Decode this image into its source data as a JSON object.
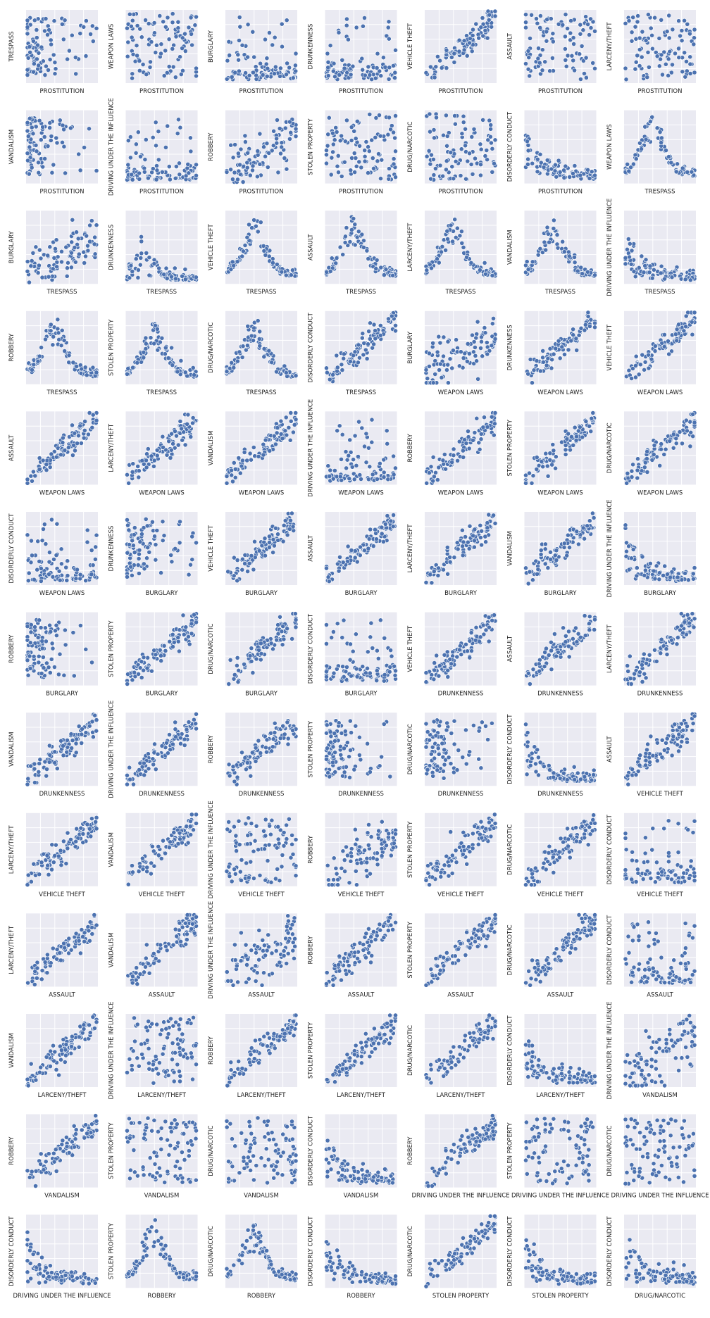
{
  "chart_data": {
    "type": "scatter",
    "grid": true,
    "marker_color": "#4c72b0",
    "marker_edge": "#ffffff",
    "panel_background": "#eaeaf2",
    "panel_gridline": "#ffffff",
    "columns": 7,
    "panels": [
      {
        "x_label": "PROSTITUTION",
        "y_label": "TRESPASS",
        "pattern": "cluster-left"
      },
      {
        "x_label": "PROSTITUTION",
        "y_label": "WEAPON LAWS",
        "pattern": "spread"
      },
      {
        "x_label": "PROSTITUTION",
        "y_label": "BURGLARY",
        "pattern": "cluster-low"
      },
      {
        "x_label": "PROSTITUTION",
        "y_label": "DRUNKENNESS",
        "pattern": "cluster-low"
      },
      {
        "x_label": "PROSTITUTION",
        "y_label": "VEHICLE THEFT",
        "pattern": "positive"
      },
      {
        "x_label": "PROSTITUTION",
        "y_label": "ASSAULT",
        "pattern": "spread"
      },
      {
        "x_label": "PROSTITUTION",
        "y_label": "LARCENY/THEFT",
        "pattern": "spread"
      },
      {
        "x_label": "PROSTITUTION",
        "y_label": "VANDALISM",
        "pattern": "cluster-left"
      },
      {
        "x_label": "PROSTITUTION",
        "y_label": "DRIVING UNDER THE INFLUENCE",
        "pattern": "cluster-low"
      },
      {
        "x_label": "PROSTITUTION",
        "y_label": "ROBBERY",
        "pattern": "positive-weak"
      },
      {
        "x_label": "PROSTITUTION",
        "y_label": "STOLEN PROPERTY",
        "pattern": "spread"
      },
      {
        "x_label": "PROSTITUTION",
        "y_label": "DRUG/NARCOTIC",
        "pattern": "spread"
      },
      {
        "x_label": "PROSTITUTION",
        "y_label": "DISORDERLY CONDUCT",
        "pattern": "decay"
      },
      {
        "x_label": "TRESPASS",
        "y_label": "WEAPON LAWS",
        "pattern": "hump"
      },
      {
        "x_label": "TRESPASS",
        "y_label": "BURGLARY",
        "pattern": "positive-weak"
      },
      {
        "x_label": "TRESPASS",
        "y_label": "DRUNKENNESS",
        "pattern": "hump-low"
      },
      {
        "x_label": "TRESPASS",
        "y_label": "VEHICLE THEFT",
        "pattern": "hump"
      },
      {
        "x_label": "TRESPASS",
        "y_label": "ASSAULT",
        "pattern": "hump"
      },
      {
        "x_label": "TRESPASS",
        "y_label": "LARCENY/THEFT",
        "pattern": "hump"
      },
      {
        "x_label": "TRESPASS",
        "y_label": "VANDALISM",
        "pattern": "hump"
      },
      {
        "x_label": "TRESPASS",
        "y_label": "DRIVING UNDER THE INFLUENCE",
        "pattern": "decay"
      },
      {
        "x_label": "TRESPASS",
        "y_label": "ROBBERY",
        "pattern": "hump"
      },
      {
        "x_label": "TRESPASS",
        "y_label": "STOLEN PROPERTY",
        "pattern": "hump"
      },
      {
        "x_label": "TRESPASS",
        "y_label": "DRUG/NARCOTIC",
        "pattern": "hump"
      },
      {
        "x_label": "TRESPASS",
        "y_label": "DISORDERLY CONDUCT",
        "pattern": "positive"
      },
      {
        "x_label": "WEAPON LAWS",
        "y_label": "BURGLARY",
        "pattern": "positive-weak"
      },
      {
        "x_label": "WEAPON LAWS",
        "y_label": "DRUNKENNESS",
        "pattern": "positive"
      },
      {
        "x_label": "WEAPON LAWS",
        "y_label": "VEHICLE THEFT",
        "pattern": "positive"
      },
      {
        "x_label": "WEAPON LAWS",
        "y_label": "ASSAULT",
        "pattern": "positive"
      },
      {
        "x_label": "WEAPON LAWS",
        "y_label": "LARCENY/THEFT",
        "pattern": "positive"
      },
      {
        "x_label": "WEAPON LAWS",
        "y_label": "VANDALISM",
        "pattern": "positive"
      },
      {
        "x_label": "WEAPON LAWS",
        "y_label": "DRIVING UNDER THE INFLUENCE",
        "pattern": "cluster-low"
      },
      {
        "x_label": "WEAPON LAWS",
        "y_label": "ROBBERY",
        "pattern": "positive"
      },
      {
        "x_label": "WEAPON LAWS",
        "y_label": "STOLEN PROPERTY",
        "pattern": "positive"
      },
      {
        "x_label": "WEAPON LAWS",
        "y_label": "DRUG/NARCOTIC",
        "pattern": "positive"
      },
      {
        "x_label": "WEAPON LAWS",
        "y_label": "DISORDERLY CONDUCT",
        "pattern": "cluster-low"
      },
      {
        "x_label": "BURGLARY",
        "y_label": "DRUNKENNESS",
        "pattern": "cluster-left"
      },
      {
        "x_label": "BURGLARY",
        "y_label": "VEHICLE THEFT",
        "pattern": "positive"
      },
      {
        "x_label": "BURGLARY",
        "y_label": "ASSAULT",
        "pattern": "positive"
      },
      {
        "x_label": "BURGLARY",
        "y_label": "LARCENY/THEFT",
        "pattern": "positive"
      },
      {
        "x_label": "BURGLARY",
        "y_label": "VANDALISM",
        "pattern": "positive"
      },
      {
        "x_label": "BURGLARY",
        "y_label": "DRIVING UNDER THE INFLUENCE",
        "pattern": "decay"
      },
      {
        "x_label": "BURGLARY",
        "y_label": "ROBBERY",
        "pattern": "cluster-left"
      },
      {
        "x_label": "BURGLARY",
        "y_label": "STOLEN PROPERTY",
        "pattern": "positive"
      },
      {
        "x_label": "BURGLARY",
        "y_label": "DRUG/NARCOTIC",
        "pattern": "positive"
      },
      {
        "x_label": "BURGLARY",
        "y_label": "DISORDERLY CONDUCT",
        "pattern": "cluster-low"
      },
      {
        "x_label": "DRUNKENNESS",
        "y_label": "VEHICLE THEFT",
        "pattern": "positive"
      },
      {
        "x_label": "DRUNKENNESS",
        "y_label": "ASSAULT",
        "pattern": "positive"
      },
      {
        "x_label": "DRUNKENNESS",
        "y_label": "LARCENY/THEFT",
        "pattern": "positive"
      },
      {
        "x_label": "DRUNKENNESS",
        "y_label": "VANDALISM",
        "pattern": "positive"
      },
      {
        "x_label": "DRUNKENNESS",
        "y_label": "DRIVING UNDER THE INFLUENCE",
        "pattern": "positive"
      },
      {
        "x_label": "DRUNKENNESS",
        "y_label": "ROBBERY",
        "pattern": "positive"
      },
      {
        "x_label": "DRUNKENNESS",
        "y_label": "STOLEN PROPERTY",
        "pattern": "cluster-left"
      },
      {
        "x_label": "DRUNKENNESS",
        "y_label": "DRUG/NARCOTIC",
        "pattern": "cluster-left"
      },
      {
        "x_label": "DRUNKENNESS",
        "y_label": "DISORDERLY CONDUCT",
        "pattern": "decay"
      },
      {
        "x_label": "VEHICLE THEFT",
        "y_label": "ASSAULT",
        "pattern": "positive"
      },
      {
        "x_label": "VEHICLE THEFT",
        "y_label": "LARCENY/THEFT",
        "pattern": "positive"
      },
      {
        "x_label": "VEHICLE THEFT",
        "y_label": "VANDALISM",
        "pattern": "positive"
      },
      {
        "x_label": "VEHICLE THEFT",
        "y_label": "DRIVING UNDER THE INFLUENCE",
        "pattern": "spread"
      },
      {
        "x_label": "VEHICLE THEFT",
        "y_label": "ROBBERY",
        "pattern": "positive-weak"
      },
      {
        "x_label": "VEHICLE THEFT",
        "y_label": "STOLEN PROPERTY",
        "pattern": "positive"
      },
      {
        "x_label": "VEHICLE THEFT",
        "y_label": "DRUG/NARCOTIC",
        "pattern": "positive"
      },
      {
        "x_label": "VEHICLE THEFT",
        "y_label": "DISORDERLY CONDUCT",
        "pattern": "cluster-low"
      },
      {
        "x_label": "ASSAULT",
        "y_label": "LARCENY/THEFT",
        "pattern": "positive"
      },
      {
        "x_label": "ASSAULT",
        "y_label": "VANDALISM",
        "pattern": "positive"
      },
      {
        "x_label": "ASSAULT",
        "y_label": "DRIVING UNDER THE INFLUENCE",
        "pattern": "positive-weak"
      },
      {
        "x_label": "ASSAULT",
        "y_label": "ROBBERY",
        "pattern": "positive"
      },
      {
        "x_label": "ASSAULT",
        "y_label": "STOLEN PROPERTY",
        "pattern": "positive"
      },
      {
        "x_label": "ASSAULT",
        "y_label": "DRUG/NARCOTIC",
        "pattern": "positive"
      },
      {
        "x_label": "ASSAULT",
        "y_label": "DISORDERLY CONDUCT",
        "pattern": "cluster-low"
      },
      {
        "x_label": "LARCENY/THEFT",
        "y_label": "VANDALISM",
        "pattern": "positive"
      },
      {
        "x_label": "LARCENY/THEFT",
        "y_label": "DRIVING UNDER THE INFLUENCE",
        "pattern": "spread"
      },
      {
        "x_label": "LARCENY/THEFT",
        "y_label": "ROBBERY",
        "pattern": "positive"
      },
      {
        "x_label": "LARCENY/THEFT",
        "y_label": "STOLEN PROPERTY",
        "pattern": "positive"
      },
      {
        "x_label": "LARCENY/THEFT",
        "y_label": "DRUG/NARCOTIC",
        "pattern": "positive"
      },
      {
        "x_label": "LARCENY/THEFT",
        "y_label": "DISORDERLY CONDUCT",
        "pattern": "decay"
      },
      {
        "x_label": "VANDALISM",
        "y_label": "DRIVING UNDER THE INFLUENCE",
        "pattern": "positive-weak"
      },
      {
        "x_label": "VANDALISM",
        "y_label": "ROBBERY",
        "pattern": "positive"
      },
      {
        "x_label": "VANDALISM",
        "y_label": "STOLEN PROPERTY",
        "pattern": "spread"
      },
      {
        "x_label": "VANDALISM",
        "y_label": "DRUG/NARCOTIC",
        "pattern": "spread"
      },
      {
        "x_label": "VANDALISM",
        "y_label": "DISORDERLY CONDUCT",
        "pattern": "decay"
      },
      {
        "x_label": "DRIVING UNDER THE INFLUENCE",
        "y_label": "ROBBERY",
        "pattern": "positive"
      },
      {
        "x_label": "DRIVING UNDER THE INFLUENCE",
        "y_label": "STOLEN PROPERTY",
        "pattern": "spread"
      },
      {
        "x_label": "DRIVING UNDER THE INFLUENCE",
        "y_label": "DRUG/NARCOTIC",
        "pattern": "spread"
      },
      {
        "x_label": "DRIVING UNDER THE INFLUENCE",
        "y_label": "DISORDERLY CONDUCT",
        "pattern": "decay"
      },
      {
        "x_label": "ROBBERY",
        "y_label": "STOLEN PROPERTY",
        "pattern": "hump"
      },
      {
        "x_label": "ROBBERY",
        "y_label": "DRUG/NARCOTIC",
        "pattern": "hump"
      },
      {
        "x_label": "ROBBERY",
        "y_label": "DISORDERLY CONDUCT",
        "pattern": "decay"
      },
      {
        "x_label": "STOLEN PROPERTY",
        "y_label": "DRUG/NARCOTIC",
        "pattern": "positive"
      },
      {
        "x_label": "STOLEN PROPERTY",
        "y_label": "DISORDERLY CONDUCT",
        "pattern": "decay"
      },
      {
        "x_label": "DRUG/NARCOTIC",
        "y_label": "DISORDERLY CONDUCT",
        "pattern": "decay"
      }
    ]
  }
}
